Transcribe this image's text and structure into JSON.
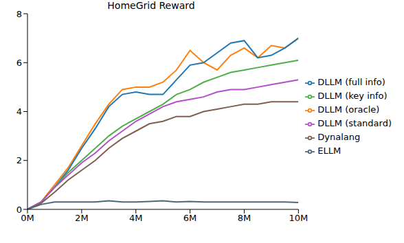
{
  "chart_data": {
    "type": "line",
    "title": "HomeGrid Reward",
    "x": [
      0,
      0.5,
      1,
      1.5,
      2,
      2.5,
      3,
      3.5,
      4,
      4.5,
      5,
      5.5,
      6,
      6.5,
      7,
      7.5,
      8,
      8.5,
      9,
      9.5,
      10
    ],
    "xlim": [
      0,
      10
    ],
    "xticks": [
      {
        "value": 0,
        "label": "0M"
      },
      {
        "value": 2,
        "label": "2M"
      },
      {
        "value": 4,
        "label": "4M"
      },
      {
        "value": 6,
        "label": "6M"
      },
      {
        "value": 8,
        "label": "8M"
      },
      {
        "value": 10,
        "label": "10M"
      }
    ],
    "ylim": [
      0,
      8
    ],
    "yticks": [
      0,
      2,
      4,
      6,
      8
    ],
    "grid": false,
    "legend": "right",
    "series": [
      {
        "name": "DLLM (oracle)",
        "color": "#ff7f0e",
        "values": [
          0,
          0.3,
          1.0,
          1.7,
          2.6,
          3.5,
          4.3,
          4.9,
          5.0,
          5.0,
          5.2,
          5.7,
          6.5,
          6.0,
          5.7,
          6.3,
          6.6,
          6.2,
          6.7,
          6.6,
          7.0
        ]
      },
      {
        "name": "DLLM (full info)",
        "color": "#1f77b4",
        "values": [
          0,
          0.3,
          0.9,
          1.6,
          2.5,
          3.3,
          4.2,
          4.7,
          4.8,
          4.7,
          4.7,
          5.3,
          5.9,
          6.0,
          6.4,
          6.8,
          6.9,
          6.2,
          6.3,
          6.6,
          7.0
        ]
      },
      {
        "name": "DLLM (key info)",
        "color": "#4daf4a",
        "values": [
          0,
          0.3,
          0.9,
          1.5,
          2.0,
          2.5,
          3.0,
          3.4,
          3.7,
          4.0,
          4.3,
          4.7,
          4.9,
          5.2,
          5.4,
          5.6,
          5.7,
          5.8,
          5.9,
          6.0,
          6.1
        ]
      },
      {
        "name": "DLLM (standard)",
        "color": "#b44fc9",
        "values": [
          0,
          0.3,
          0.9,
          1.4,
          1.9,
          2.3,
          2.8,
          3.2,
          3.6,
          3.9,
          4.2,
          4.4,
          4.5,
          4.6,
          4.8,
          4.9,
          4.9,
          5.0,
          5.1,
          5.2,
          5.3
        ]
      },
      {
        "name": "Dynalang",
        "color": "#7f5f4f",
        "values": [
          0,
          0.25,
          0.7,
          1.2,
          1.6,
          2.0,
          2.5,
          2.9,
          3.2,
          3.5,
          3.6,
          3.8,
          3.8,
          4.0,
          4.1,
          4.2,
          4.3,
          4.3,
          4.4,
          4.4,
          4.4
        ]
      },
      {
        "name": "ELLM",
        "color": "#4a6a7a",
        "values": [
          0,
          0.2,
          0.3,
          0.3,
          0.3,
          0.3,
          0.35,
          0.3,
          0.3,
          0.32,
          0.35,
          0.3,
          0.32,
          0.3,
          0.3,
          0.3,
          0.3,
          0.3,
          0.3,
          0.3,
          0.28
        ]
      }
    ]
  }
}
